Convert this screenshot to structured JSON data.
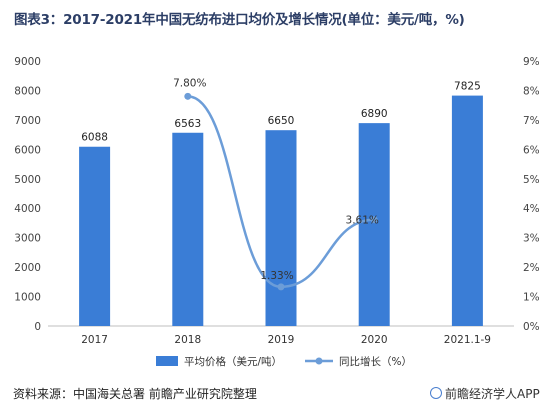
{
  "title": "图表3：2017-2021年中国无纺布进口均价及增长情况(单位：美元/吨，%)",
  "source": "资料来源：中国海关总署 前瞻产业研究院整理",
  "brand": "前瞻经济学人APP",
  "colors": {
    "bar": "#3a7dd6",
    "line": "#6c9dd8",
    "axis": "#bfbfbf",
    "title": "#2c3e66"
  },
  "chart_data": {
    "type": "bar+line",
    "categories": [
      "2017",
      "2018",
      "2019",
      "2020",
      "2021.1-9"
    ],
    "series": [
      {
        "name": "平均价格（美元/吨）",
        "type": "bar",
        "axis": "left",
        "values": [
          6088,
          6563,
          6650,
          6890,
          7825
        ],
        "labels": [
          "6088",
          "6563",
          "6650",
          "6890",
          "7825"
        ]
      },
      {
        "name": "同比增长（%）",
        "type": "line",
        "axis": "right",
        "x": [
          "2018",
          "2019",
          "2020"
        ],
        "values": [
          7.8,
          1.33,
          3.61
        ],
        "labels": [
          "7.80%",
          "1.33%",
          "3.61%"
        ]
      }
    ],
    "left_axis": {
      "ylim": [
        0,
        9000
      ],
      "ticks": [
        "0",
        "1000",
        "2000",
        "3000",
        "4000",
        "5000",
        "6000",
        "7000",
        "8000",
        "9000"
      ]
    },
    "right_axis": {
      "ylim": [
        0,
        9
      ],
      "ticks": [
        "0%",
        "1%",
        "2%",
        "3%",
        "4%",
        "5%",
        "6%",
        "7%",
        "8%",
        "9%"
      ]
    },
    "legend_position": "bottom",
    "grid": false
  }
}
